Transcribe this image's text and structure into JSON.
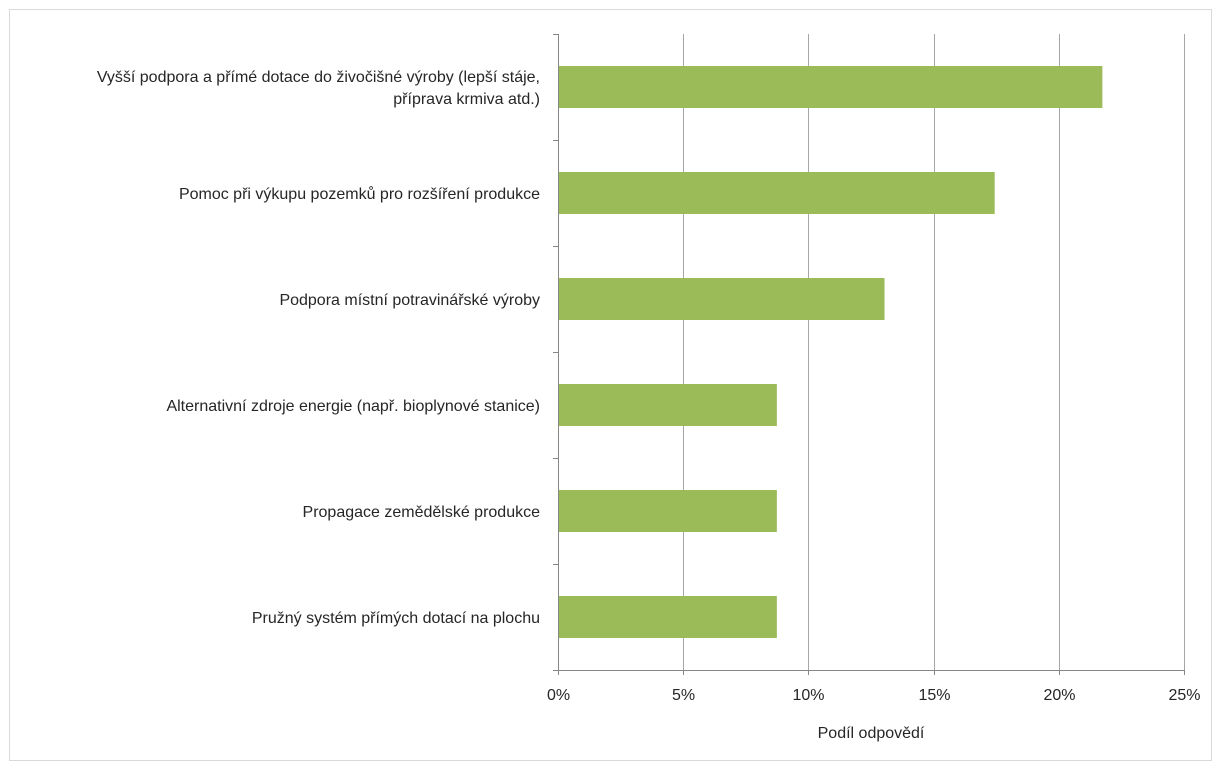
{
  "chart_data": {
    "type": "bar",
    "orientation": "horizontal",
    "categories": [
      [
        "Vyšší podpora a přímé dotace do živočišné výroby (lepší stáje,",
        "příprava krmiva atd.)"
      ],
      [
        "Pomoc při výkupu pozemků pro rozšíření produkce"
      ],
      [
        "Podpora místní potravinářské výroby"
      ],
      [
        "Alternativní zdroje energie (např. bioplynové stanice)"
      ],
      [
        "Propagace zemědělské produkce"
      ],
      [
        "Pružný systém přímých dotací na plochu"
      ]
    ],
    "values": [
      21.7,
      17.4,
      13.0,
      8.7,
      8.7,
      8.7
    ],
    "xlabel": "Podíl odpovědí",
    "ylabel": "",
    "xlim": [
      0,
      25
    ],
    "xticks": [
      0,
      5,
      10,
      15,
      20,
      25
    ],
    "xtick_labels": [
      "0%",
      "5%",
      "10%",
      "15%",
      "20%",
      "25%"
    ],
    "grid": "vertical",
    "legend": "none",
    "bar_color": "#9bbb59",
    "grid_color": "#a6a6a6",
    "axis_color": "#868686"
  }
}
